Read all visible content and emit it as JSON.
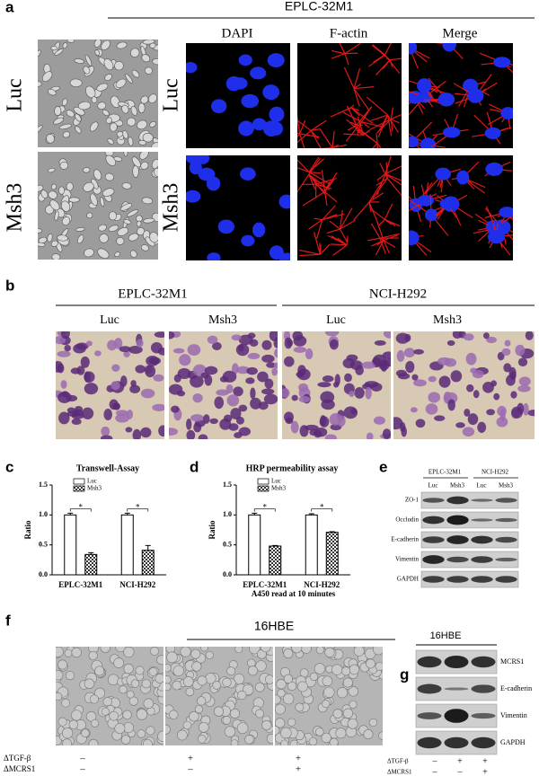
{
  "figure": {
    "a": {
      "label": "a",
      "title": "EPLC-32M1",
      "columns": [
        "DAPI",
        "F-actin",
        "Merge"
      ],
      "rows": [
        "Luc",
        "Msh3"
      ]
    },
    "b": {
      "label": "b",
      "groups": [
        "EPLC-32M1",
        "NCI-H292"
      ],
      "columns": [
        "Luc",
        "Msh3",
        "Luc",
        "Msh3"
      ]
    },
    "e": {
      "label": "e",
      "groups": [
        "EPLC-32M1",
        "NCI-H292"
      ],
      "lanes": [
        "Luc",
        "Msh3",
        "Luc",
        "Msh3"
      ],
      "proteins": [
        "ZO-1",
        "Occludin",
        "E-cadherin",
        "Vimentin",
        "GAPDH"
      ]
    },
    "f": {
      "label": "f",
      "title": "16HBE",
      "treatments": [
        {
          "name": "ΔTGF-β",
          "marks": [
            "–",
            "+",
            "+"
          ]
        },
        {
          "name": "ΔMCRS1",
          "marks": [
            "–",
            "–",
            "+"
          ]
        }
      ]
    },
    "g": {
      "label": "g",
      "title": "16HBE",
      "proteins": [
        "MCRS1",
        "E-cadherin",
        "Vimentin",
        "GAPDH"
      ],
      "treatments": [
        {
          "name": "ΔTGF-β",
          "marks": [
            "–",
            "+",
            "+"
          ]
        },
        {
          "name": "ΔMCRS1",
          "marks": [
            "–",
            "–",
            "+"
          ]
        }
      ]
    }
  },
  "chart_data": [
    {
      "type": "bar",
      "panel": "c",
      "title": "Transwell-Assay",
      "ylabel": "Ratio",
      "categories": [
        "EPLC-32M1",
        "NCI-H292"
      ],
      "series": [
        {
          "name": "Luc",
          "color": "#ffffff",
          "values": [
            1.0,
            1.0
          ],
          "errors": [
            0.03,
            0.03
          ]
        },
        {
          "name": "Msh3",
          "color": "#333333",
          "pattern": "checker",
          "values": [
            0.34,
            0.41
          ],
          "errors": [
            0.03,
            0.08
          ]
        }
      ],
      "ylim": [
        0,
        1.5
      ],
      "yticks": [
        {
          "value": 0,
          "label": "0.0"
        },
        0.5,
        {
          "value": 1,
          "label": "1.0"
        },
        1.5
      ],
      "annotations": [
        "*",
        "*"
      ]
    },
    {
      "type": "bar",
      "panel": "d",
      "title": "HRP permeability assay",
      "ylabel": "Ratio",
      "xlabel": "A450 read at 10 minutes",
      "categories": [
        "EPLC-32M1",
        "NCI-H292"
      ],
      "series": [
        {
          "name": "Luc",
          "color": "#ffffff",
          "values": [
            1.0,
            1.0
          ],
          "errors": [
            0.03,
            0.02
          ]
        },
        {
          "name": "Msh3",
          "color": "#333333",
          "pattern": "checker",
          "values": [
            0.48,
            0.71
          ],
          "errors": [
            0.01,
            0.01
          ]
        }
      ],
      "ylim": [
        0,
        1.5
      ],
      "yticks": [
        {
          "value": 0,
          "label": "0.0"
        },
        0.5,
        {
          "value": 1,
          "label": "1.0"
        },
        1.5
      ],
      "annotations": [
        "*",
        "*"
      ]
    }
  ]
}
